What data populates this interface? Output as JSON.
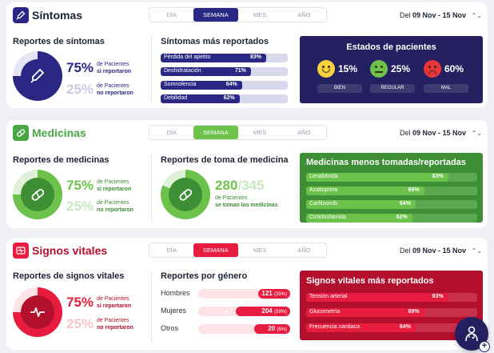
{
  "colors": {
    "sintomas": "#2b2885",
    "medicinas": "#4aa744",
    "signos": "#e81c3f",
    "signos_panel": "#b3102e",
    "medicinas_panel": "#3d8e35"
  },
  "sintomas": {
    "title": "Síntomas",
    "icon": "thermometer-icon",
    "tabs": [
      "DÍA",
      "SEMANA",
      "MES",
      "AÑO"
    ],
    "active_tab": "SEMANA",
    "date_prefix": "Del",
    "date_range": "09 Nov - 15 Nov",
    "reportes": {
      "title": "Reportes de síntomas",
      "reported_pct": "75%",
      "reported_label_1": "de Pacientes",
      "reported_label_2": "si reportaron",
      "not_reported_pct": "25%",
      "not_reported_label_1": "de Pacientes",
      "not_reported_label_2": "no reportaron",
      "reported_fraction": 0.75
    },
    "mas_reportados": {
      "title": "Síntomas más reportados",
      "items": [
        {
          "name": "Pérdida del apetito",
          "value": "83%",
          "fraction": 0.83
        },
        {
          "name": "Deshidratación",
          "value": "71%",
          "fraction": 0.71
        },
        {
          "name": "Somnolencia",
          "value": "64%",
          "fraction": 0.64
        },
        {
          "name": "Debilidad",
          "value": "62%",
          "fraction": 0.62
        }
      ]
    },
    "estados": {
      "title": "Estados de pacientes",
      "items": [
        {
          "face": "happy-face-icon",
          "pct": "15%",
          "label": "BIEN"
        },
        {
          "face": "neutral-face-icon",
          "pct": "25%",
          "label": "REGULAR"
        },
        {
          "face": "sad-face-icon",
          "pct": "60%",
          "label": "MAL"
        }
      ]
    }
  },
  "medicinas": {
    "title": "Medicinas",
    "icon": "pill-icon",
    "tabs": [
      "DÍA",
      "SEMANA",
      "MES",
      "AÑO"
    ],
    "active_tab": "SEMANA",
    "date_prefix": "Del",
    "date_range": "09 Nov - 15 Nov",
    "reportes": {
      "title": "Reportes de medicinas",
      "reported_pct": "75%",
      "reported_label_1": "de Pacientes",
      "reported_label_2": "si reportaron",
      "not_reported_pct": "25%",
      "not_reported_label_1": "de Pacientes",
      "not_reported_label_2": "no reportaron",
      "reported_fraction": 0.75
    },
    "toma": {
      "title": "Reportes de toma de medicina",
      "count": "280",
      "total": "/345",
      "label_1": "de Pacientes",
      "label_2": "se toman las medicinas",
      "fraction": 0.81
    },
    "menos_tomadas": {
      "title": "Medicinas menos tomadas/reportadas",
      "items": [
        {
          "name": "Lenalidoida",
          "value": "83%",
          "fraction": 0.83
        },
        {
          "name": "Azatioprina",
          "value": "69%",
          "fraction": 0.69
        },
        {
          "name": "Carfilzomib",
          "value": "64%",
          "fraction": 0.64
        },
        {
          "name": "Ciclofosfamida",
          "value": "62%",
          "fraction": 0.62
        }
      ]
    }
  },
  "signos": {
    "title": "Signos vitales",
    "icon": "heart-monitor-icon",
    "tabs": [
      "DÍA",
      "SEMANA",
      "MES",
      "AÑO"
    ],
    "active_tab": "SEMANA",
    "date_prefix": "Del",
    "date_range": "09 Nov - 15 Nov",
    "reportes": {
      "title": "Reportes de signos vitales",
      "reported_pct": "75%",
      "reported_label_1": "de Pacientes",
      "reported_label_2": "si reportaron",
      "not_reported_pct": "25%",
      "not_reported_label_1": "de Pacientes",
      "not_reported_label_2": "no reportaron",
      "reported_fraction": 0.75
    },
    "genero": {
      "title": "Reportes por género",
      "items": [
        {
          "label": "Hombres",
          "count": "121",
          "pct": "(35%)",
          "fraction": 0.35
        },
        {
          "label": "Mujeres",
          "count": "204",
          "pct": "(59%)",
          "fraction": 0.59
        },
        {
          "label": "Otros",
          "count": "20",
          "pct": "(6%)",
          "fraction": 0.06
        }
      ]
    },
    "mas_reportados": {
      "title": "Signos vitales más reportados",
      "items": [
        {
          "name": "Tensión arterial",
          "value": "83%",
          "fraction": 0.83
        },
        {
          "name": "Glucometría",
          "value": "69%",
          "fraction": 0.69
        },
        {
          "name": "Frecuencia cardiaca",
          "value": "64%",
          "fraction": 0.64
        }
      ]
    }
  },
  "fab": {
    "icon": "doctor-stethoscope-icon",
    "plus": "+"
  }
}
